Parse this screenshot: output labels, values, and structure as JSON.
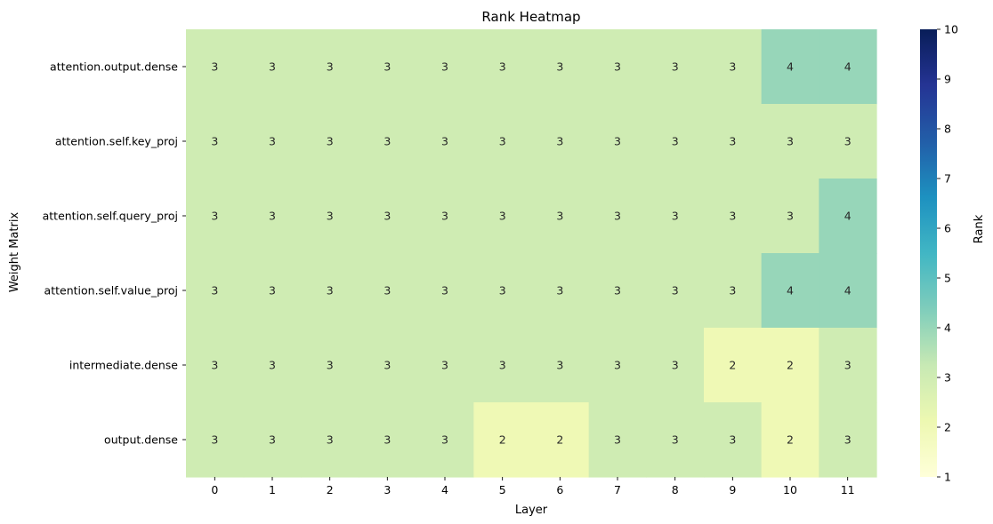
{
  "chart_data": {
    "type": "heatmap",
    "title": "Rank Heatmap",
    "xlabel": "Layer",
    "ylabel": "Weight Matrix",
    "x_categories": [
      "0",
      "1",
      "2",
      "3",
      "4",
      "5",
      "6",
      "7",
      "8",
      "9",
      "10",
      "11"
    ],
    "y_categories": [
      "attention.output.dense",
      "attention.self.key_proj",
      "attention.self.query_proj",
      "attention.self.value_proj",
      "intermediate.dense",
      "output.dense"
    ],
    "values": [
      [
        3,
        3,
        3,
        3,
        3,
        3,
        3,
        3,
        3,
        3,
        4,
        4
      ],
      [
        3,
        3,
        3,
        3,
        3,
        3,
        3,
        3,
        3,
        3,
        3,
        3
      ],
      [
        3,
        3,
        3,
        3,
        3,
        3,
        3,
        3,
        3,
        3,
        3,
        4
      ],
      [
        3,
        3,
        3,
        3,
        3,
        3,
        3,
        3,
        3,
        3,
        4,
        4
      ],
      [
        3,
        3,
        3,
        3,
        3,
        3,
        3,
        3,
        3,
        2,
        2,
        3
      ],
      [
        3,
        3,
        3,
        3,
        3,
        2,
        2,
        3,
        3,
        3,
        2,
        3
      ]
    ],
    "colorbar": {
      "label": "Rank",
      "min": 1,
      "max": 10,
      "ticks": [
        1,
        2,
        3,
        4,
        5,
        6,
        7,
        8,
        9,
        10
      ],
      "colormap": "YlGnBu"
    },
    "annotations": true
  }
}
